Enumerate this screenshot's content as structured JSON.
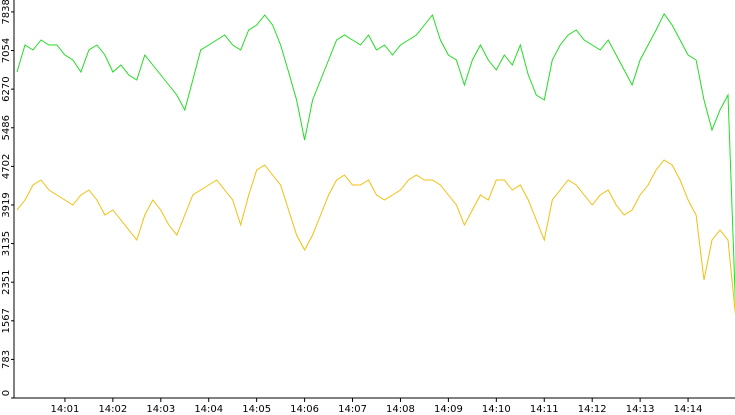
{
  "chart_data": {
    "type": "line",
    "categories": [
      null,
      null,
      null,
      null,
      null,
      null,
      "14:01",
      null,
      null,
      null,
      null,
      null,
      "14:02",
      null,
      null,
      null,
      null,
      null,
      "14:03",
      null,
      null,
      null,
      null,
      null,
      "14:04",
      null,
      null,
      null,
      null,
      null,
      "14:05",
      null,
      null,
      null,
      null,
      null,
      "14:06",
      null,
      null,
      null,
      null,
      null,
      "14:07",
      null,
      null,
      null,
      null,
      null,
      "14:08",
      null,
      null,
      null,
      null,
      null,
      "14:09",
      null,
      null,
      null,
      null,
      null,
      "14:10",
      null,
      null,
      null,
      null,
      null,
      "14:11",
      null,
      null,
      null,
      null,
      null,
      "14:12",
      null,
      null,
      null,
      null,
      null,
      "14:13",
      null,
      null,
      null,
      null,
      null,
      "14:14",
      null,
      null,
      null,
      null,
      null,
      null
    ],
    "series": [
      {
        "color": "#22dd22",
        "values": [
          6618,
          7166,
          7064,
          7267,
          7166,
          7166,
          6963,
          6861,
          6618,
          7064,
          7166,
          6963,
          6618,
          6760,
          6557,
          6455,
          6963,
          6760,
          6557,
          6354,
          6151,
          5846,
          6455,
          7064,
          7166,
          7267,
          7369,
          7166,
          7064,
          7470,
          7572,
          7775,
          7572,
          7166,
          6618,
          6049,
          5237,
          6049,
          6455,
          6861,
          7267,
          7369,
          7267,
          7166,
          7369,
          7064,
          7166,
          6963,
          7166,
          7267,
          7369,
          7572,
          7775,
          7267,
          6963,
          6861,
          6354,
          6861,
          7166,
          6861,
          6658,
          6963,
          6760,
          7166,
          6557,
          6151,
          6049,
          6861,
          7166,
          7369,
          7470,
          7267,
          7166,
          7064,
          7267,
          6963,
          6658,
          6354,
          6861,
          7166,
          7470,
          7800,
          7572,
          7267,
          6963,
          6861,
          6049,
          5440,
          5846,
          6151,
          1600
        ]
      },
      {
        "color": "#f2bf10",
        "values": [
          3816,
          4019,
          4324,
          4425,
          4222,
          4121,
          4019,
          3918,
          4121,
          4222,
          4019,
          3715,
          3816,
          3613,
          3410,
          3207,
          3715,
          4019,
          3816,
          3512,
          3309,
          3715,
          4121,
          4222,
          4324,
          4425,
          4222,
          4019,
          3512,
          4121,
          4628,
          4730,
          4527,
          4324,
          3816,
          3309,
          3004,
          3309,
          3715,
          4121,
          4425,
          4527,
          4324,
          4324,
          4425,
          4121,
          4019,
          4121,
          4222,
          4425,
          4527,
          4425,
          4425,
          4324,
          4121,
          3918,
          3512,
          3816,
          4121,
          4019,
          4425,
          4425,
          4222,
          4324,
          4019,
          3613,
          3207,
          4019,
          4222,
          4425,
          4324,
          4121,
          3918,
          4121,
          4222,
          3918,
          3715,
          3816,
          4121,
          4324,
          4628,
          4831,
          4730,
          4425,
          4019,
          3715,
          2395,
          3207,
          3410,
          3207,
          1583
        ]
      }
    ],
    "ylim": [
      0,
      8080
    ],
    "yticks": [
      0,
      783,
      1567,
      2351,
      3135,
      3919,
      4702,
      5486,
      6270,
      7054,
      7838
    ]
  }
}
